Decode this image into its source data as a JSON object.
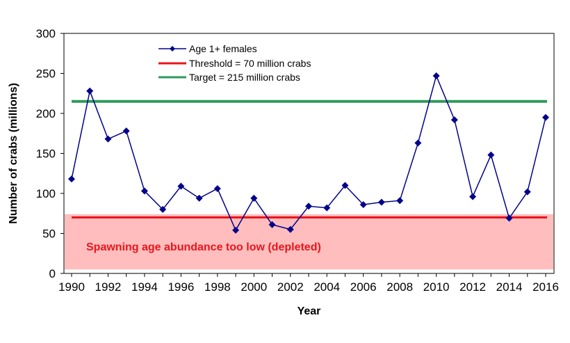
{
  "chart_data": {
    "type": "line",
    "title": "",
    "xlabel": "Year",
    "ylabel": "Number of crabs (millions)",
    "xlim": [
      1990,
      2016
    ],
    "ylim": [
      0,
      300
    ],
    "x_ticks": [
      1990,
      1992,
      1994,
      1996,
      1998,
      2000,
      2002,
      2004,
      2006,
      2008,
      2010,
      2012,
      2014,
      2016
    ],
    "y_ticks": [
      0,
      50,
      100,
      150,
      200,
      250,
      300
    ],
    "grid": false,
    "legend_position": "top-center",
    "series": [
      {
        "name": "Age 1+ females",
        "color": "#00008B",
        "marker": "diamond",
        "x": [
          1990,
          1991,
          1992,
          1993,
          1994,
          1995,
          1996,
          1997,
          1998,
          1999,
          2000,
          2001,
          2002,
          2003,
          2004,
          2005,
          2006,
          2007,
          2008,
          2009,
          2010,
          2011,
          2012,
          2013,
          2014,
          2015,
          2016
        ],
        "values": [
          118,
          228,
          168,
          178,
          103,
          80,
          109,
          94,
          106,
          54,
          94,
          61,
          55,
          84,
          82,
          110,
          86,
          89,
          91,
          163,
          247,
          192,
          96,
          148,
          69,
          102,
          195
        ]
      }
    ],
    "reference_lines": [
      {
        "name": "Threshold = 70 million crabs",
        "value": 70,
        "color": "#E8161C"
      },
      {
        "name": "Target = 215 million crabs",
        "value": 215,
        "color": "#2E9A5A"
      }
    ],
    "zone": {
      "label": "Spawning age abundance too low  (depleted)",
      "from": 5,
      "to": 74,
      "fill": "#FFBDBD",
      "text_color": "#E8161C"
    }
  }
}
